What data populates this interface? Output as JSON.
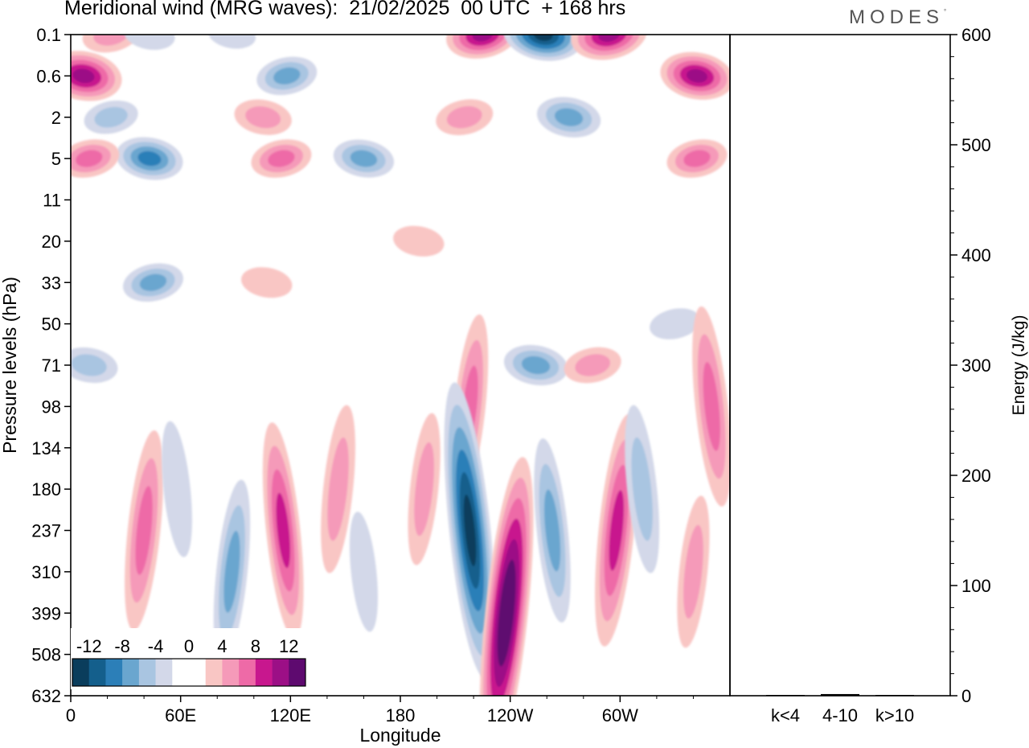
{
  "title": "Meridional wind (MRG waves):  21/02/2025  00 UTC  + 168 hrs",
  "brand": {
    "text": "MODES",
    "mark": "°"
  },
  "chart_data": [
    {
      "type": "heatmap",
      "variable": "Meridional wind (MRG waves)",
      "xlabel": "Longitude",
      "ylabel": "Pressure levels (hPa)",
      "x_ticks": [
        "0",
        "60E",
        "120E",
        "180",
        "120W",
        "60W"
      ],
      "x_tick_values": [
        0,
        60,
        120,
        180,
        240,
        300
      ],
      "xlim": [
        0,
        360
      ],
      "y_ticks": [
        "0.1",
        "0.6",
        "2",
        "5",
        "11",
        "20",
        "33",
        "50",
        "71",
        "98",
        "134",
        "180",
        "237",
        "310",
        "399",
        "508",
        "632"
      ],
      "y_axis": "pressure levels (equally spaced model levels)",
      "colorbar": {
        "labels": [
          "-12",
          "-8",
          "-4",
          "0",
          "4",
          "8",
          "12"
        ],
        "colors": [
          "#0a3d5c",
          "#145f8c",
          "#2c7fb8",
          "#6aa6cf",
          "#a9c5e1",
          "#d3d8e9",
          "#ffffff",
          "#ffffff",
          "#f9c6c4",
          "#f59ab9",
          "#ee6aa7",
          "#c8178e",
          "#9c0f86",
          "#5e0a6f"
        ]
      },
      "features": [
        {
          "lon": 7,
          "level": "0.6",
          "value": 11
        },
        {
          "lon": 22,
          "level": "0.1",
          "value": 5
        },
        {
          "lon": 43,
          "level": "0.1",
          "value": -3
        },
        {
          "lon": 22,
          "level": "2",
          "value": -4
        },
        {
          "lon": 43,
          "level": "5",
          "value": -8
        },
        {
          "lon": 10,
          "level": "5",
          "value": 6
        },
        {
          "lon": 88,
          "level": "0.1",
          "value": -2
        },
        {
          "lon": 118,
          "level": "0.6",
          "value": -6
        },
        {
          "lon": 105,
          "level": "2",
          "value": 5
        },
        {
          "lon": 115,
          "level": "5",
          "value": 6
        },
        {
          "lon": 160,
          "level": "5",
          "value": -6
        },
        {
          "lon": 225,
          "level": "0.1",
          "value": 10
        },
        {
          "lon": 258,
          "level": "0.1",
          "value": -12
        },
        {
          "lon": 294,
          "level": "0.1",
          "value": 11
        },
        {
          "lon": 272,
          "level": "2",
          "value": -7
        },
        {
          "lon": 215,
          "level": "2",
          "value": 5
        },
        {
          "lon": 342,
          "level": "0.6",
          "value": 10
        },
        {
          "lon": 342,
          "level": "5",
          "value": 6
        },
        {
          "lon": 190,
          "level": "20",
          "value": 3
        },
        {
          "lon": 45,
          "level": "33",
          "value": -6
        },
        {
          "lon": 107,
          "level": "33",
          "value": 3
        },
        {
          "lon": 330,
          "level": "50",
          "value": -3
        },
        {
          "lon": 10,
          "level": "71",
          "value": -5
        },
        {
          "lon": 218,
          "level": "98",
          "value": 6
        },
        {
          "lon": 254,
          "level": "71",
          "value": -7
        },
        {
          "lon": 285,
          "level": "71",
          "value": 5
        },
        {
          "lon": 350,
          "level": "98",
          "value": 7
        },
        {
          "lon": 40,
          "level": "237",
          "value": 7
        },
        {
          "lon": 58,
          "level": "180",
          "value": -3
        },
        {
          "lon": 88,
          "level": "310",
          "value": -6
        },
        {
          "lon": 116,
          "level": "237",
          "value": 8
        },
        {
          "lon": 146,
          "level": "180",
          "value": 5
        },
        {
          "lon": 160,
          "level": "310",
          "value": -2
        },
        {
          "lon": 193,
          "level": "180",
          "value": 4
        },
        {
          "lon": 218,
          "level": "237",
          "value": -13
        },
        {
          "lon": 238,
          "level": "399",
          "value": 14
        },
        {
          "lon": 263,
          "level": "237",
          "value": -6
        },
        {
          "lon": 298,
          "level": "237",
          "value": 9
        },
        {
          "lon": 312,
          "level": "180",
          "value": -5
        },
        {
          "lon": 340,
          "level": "310",
          "value": 4
        }
      ]
    },
    {
      "type": "bar",
      "ylabel": "Energy (J/kg)",
      "categories": [
        "k<4",
        "4-10",
        "k>10"
      ],
      "values": [
        0.3,
        1.5,
        0.3
      ],
      "ylim": [
        0,
        600
      ],
      "y_ticks": [
        "0",
        "100",
        "200",
        "300",
        "400",
        "500",
        "600"
      ]
    }
  ]
}
